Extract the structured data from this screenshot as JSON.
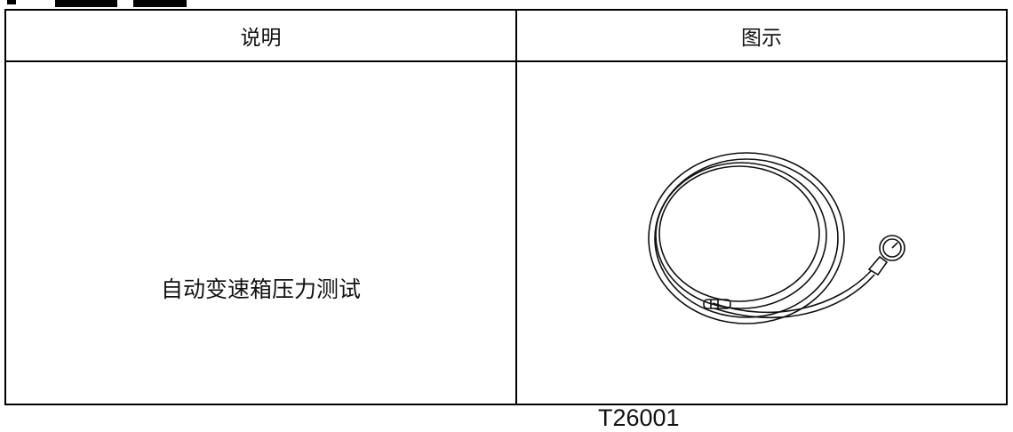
{
  "table": {
    "header": [
      "说明",
      "图示"
    ],
    "rows": [
      [
        {
          "text": "自动变速箱压力测试"
        },
        {
          "label": "T26001"
        }
      ]
    ]
  }
}
